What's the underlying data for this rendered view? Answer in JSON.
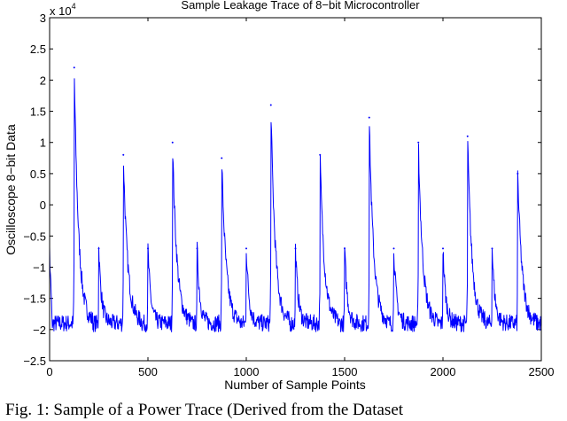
{
  "chart_data": {
    "type": "line",
    "title": "Sample Leakage Trace of 8−bit Microcontroller",
    "xlabel": "Number of Sample Points",
    "ylabel": "Oscilloscope 8−bit Data",
    "y_multiplier_label": "x 10",
    "y_multiplier_exponent": "4",
    "xlim": [
      0,
      2500
    ],
    "ylim": [
      -2.5,
      3
    ],
    "x_ticks": [
      "0",
      "500",
      "1000",
      "1500",
      "2000",
      "2500"
    ],
    "y_ticks": [
      "−2.5",
      "−2",
      "−1.5",
      "−1",
      "−0.5",
      "0",
      "0.5",
      "1",
      "1.5",
      "2",
      "2.5",
      "3"
    ],
    "grid": false,
    "line_color": "#0000ff",
    "series": [
      {
        "baseline_range": [
          -2.1,
          -1.6
        ],
        "peaks": [
          {
            "x": 125,
            "y": 2.2
          },
          {
            "x": 250,
            "y": -0.7
          },
          {
            "x": 375,
            "y": 0.8
          },
          {
            "x": 500,
            "y": -0.7
          },
          {
            "x": 625,
            "y": 1.0
          },
          {
            "x": 750,
            "y": -0.7
          },
          {
            "x": 875,
            "y": 0.75
          },
          {
            "x": 1000,
            "y": -0.7
          },
          {
            "x": 1125,
            "y": 1.6
          },
          {
            "x": 1250,
            "y": -0.7
          },
          {
            "x": 1375,
            "y": 0.8
          },
          {
            "x": 1500,
            "y": -0.7
          },
          {
            "x": 1625,
            "y": 1.4
          },
          {
            "x": 1750,
            "y": -0.7
          },
          {
            "x": 1875,
            "y": 1.0
          },
          {
            "x": 2000,
            "y": -0.7
          },
          {
            "x": 2125,
            "y": 1.1
          },
          {
            "x": 2250,
            "y": -0.7
          },
          {
            "x": 2380,
            "y": 0.5
          }
        ]
      }
    ]
  },
  "caption": "Fig. 1: Sample of a Power Trace (Derived from the Dataset"
}
